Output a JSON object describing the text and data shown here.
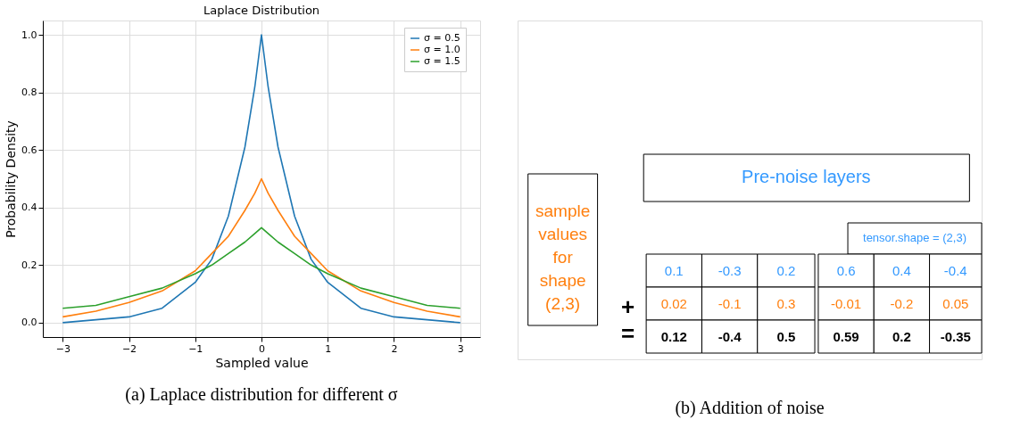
{
  "chart_data": [
    {
      "type": "line",
      "title": "Laplace Distribution",
      "xlabel": "Sampled value",
      "ylabel": "Probability Density",
      "x": [
        -3,
        -2.5,
        -2,
        -1.5,
        -1,
        -0.75,
        -0.5,
        -0.25,
        -0.1,
        0,
        0.1,
        0.25,
        0.5,
        0.75,
        1,
        1.5,
        2,
        2.5,
        3
      ],
      "series": [
        {
          "name": "σ = 0.5",
          "color": "#1f77b4",
          "values": [
            0.0,
            0.01,
            0.02,
            0.05,
            0.14,
            0.22,
            0.37,
            0.61,
            0.82,
            1.0,
            0.82,
            0.61,
            0.37,
            0.22,
            0.14,
            0.05,
            0.02,
            0.01,
            0.0
          ]
        },
        {
          "name": "σ = 1.0",
          "color": "#ff7f0e",
          "values": [
            0.02,
            0.04,
            0.07,
            0.11,
            0.18,
            0.24,
            0.3,
            0.39,
            0.45,
            0.5,
            0.45,
            0.39,
            0.3,
            0.24,
            0.18,
            0.11,
            0.07,
            0.04,
            0.02
          ]
        },
        {
          "name": "σ = 1.5",
          "color": "#2ca02c",
          "values": [
            0.05,
            0.06,
            0.09,
            0.12,
            0.17,
            0.2,
            0.24,
            0.28,
            0.31,
            0.33,
            0.31,
            0.28,
            0.24,
            0.2,
            0.17,
            0.12,
            0.09,
            0.06,
            0.05
          ]
        }
      ],
      "xlim": [
        -3.3,
        3.3
      ],
      "xticks": [
        {
          "value": -3,
          "label": "−3"
        },
        {
          "value": -2,
          "label": "−2"
        },
        {
          "value": -1,
          "label": "−1"
        },
        0,
        1,
        2,
        3
      ],
      "ylim": [
        -0.05,
        1.05
      ],
      "yticks": [
        {
          "value": 0,
          "label": "0.0"
        },
        {
          "value": 0.2,
          "label": "0.2"
        },
        {
          "value": 0.4,
          "label": "0.4"
        },
        {
          "value": 0.6,
          "label": "0.6"
        },
        {
          "value": 0.8,
          "label": "0.8"
        },
        {
          "value": 1,
          "label": "1.0"
        }
      ],
      "grid": true,
      "legend": "top right",
      "marker": "none",
      "line_style": "solid",
      "annotations": [
        "(a) Laplace distribution for different σ"
      ]
    },
    {
      "type": "other",
      "title": "(b) Addition of noise",
      "annotations": [
        "sample values for shape (2,3)",
        "Pre-noise layers",
        "tensor.shape = (2,3)",
        "+",
        "=",
        "0.1",
        "-0.3",
        "0.2",
        "0.6",
        "0.4",
        "-0.4",
        "0.02",
        "-0.1",
        "0.3",
        "-0.01",
        "-0.2",
        "0.05",
        "0.12",
        "-0.4",
        "0.5",
        "0.59",
        "0.2",
        "-0.35"
      ]
    }
  ]
}
